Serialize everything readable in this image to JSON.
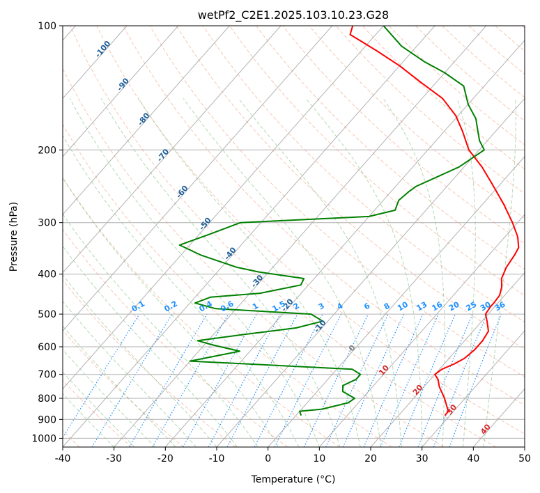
{
  "chart_data": {
    "type": "skew-t",
    "title": "wetPf2_C2E1.2025.103.10.23.G28",
    "xlabel": "Temperature (°C)",
    "ylabel": "Pressure (hPa)",
    "xlim": [
      -40,
      50
    ],
    "ylim": [
      1050,
      100
    ],
    "y_scale": "log",
    "x_ticks": [
      -40,
      -30,
      -20,
      -10,
      0,
      10,
      20,
      30,
      40,
      50
    ],
    "y_ticks": [
      100,
      200,
      300,
      400,
      500,
      600,
      700,
      800,
      900,
      1000
    ],
    "grid": true,
    "colors": {
      "temperature": "#ff0000",
      "dewpoint": "#008000",
      "isotherm": "#a0a0a0",
      "dry_adiabat": "#f4a080",
      "moist_adiabat": "#80c080",
      "mixing_ratio": "#1e90ff",
      "isotherm_label_dark": "#1f5f99",
      "isotherm_label_red": "#d62728",
      "isotherm_label_gray": "#808080"
    },
    "series": [
      {
        "key": "temperature",
        "points": [
          [
            29.0,
            880
          ],
          [
            29.0,
            860
          ],
          [
            28.0,
            840
          ],
          [
            26.0,
            800
          ],
          [
            23.0,
            750
          ],
          [
            21.5,
            720
          ],
          [
            20.0,
            700
          ],
          [
            20.5,
            680
          ],
          [
            22.0,
            660
          ],
          [
            23.0,
            640
          ],
          [
            23.5,
            610
          ],
          [
            23.5,
            580
          ],
          [
            23.0,
            550
          ],
          [
            21.0,
            520
          ],
          [
            19.5,
            500
          ],
          [
            19.2,
            480
          ],
          [
            19.2,
            470
          ],
          [
            19.0,
            450
          ],
          [
            18.0,
            430
          ],
          [
            16.5,
            410
          ],
          [
            15.5,
            385
          ],
          [
            15.0,
            360
          ],
          [
            14.5,
            345
          ],
          [
            12.5,
            325
          ],
          [
            9.0,
            300
          ],
          [
            4.0,
            270
          ],
          [
            -2.0,
            240
          ],
          [
            -6.5,
            220
          ],
          [
            -12.0,
            200
          ],
          [
            -16.5,
            180
          ],
          [
            -20.5,
            165
          ],
          [
            -26.0,
            150
          ],
          [
            -32.5,
            138
          ],
          [
            -40.0,
            125
          ],
          [
            -47.0,
            115
          ],
          [
            -55.0,
            105
          ],
          [
            -56.0,
            100
          ]
        ]
      },
      {
        "key": "dewpoint",
        "points": [
          [
            1.0,
            880
          ],
          [
            0.0,
            860
          ],
          [
            4.0,
            850
          ],
          [
            8.0,
            820
          ],
          [
            8.5,
            800
          ],
          [
            5.0,
            770
          ],
          [
            4.0,
            745
          ],
          [
            5.5,
            720
          ],
          [
            5.5,
            700
          ],
          [
            3.0,
            680
          ],
          [
            -30.0,
            650
          ],
          [
            -22.0,
            615
          ],
          [
            -28.0,
            595
          ],
          [
            -32.0,
            580
          ],
          [
            -24.0,
            560
          ],
          [
            -15.0,
            540
          ],
          [
            -11.0,
            520
          ],
          [
            -14.5,
            500
          ],
          [
            -34.0,
            485
          ],
          [
            -39.0,
            470
          ],
          [
            -37.0,
            455
          ],
          [
            -28.0,
            445
          ],
          [
            -21.5,
            425
          ],
          [
            -22.0,
            410
          ],
          [
            -32.0,
            395
          ],
          [
            -37.0,
            385
          ],
          [
            -46.0,
            360
          ],
          [
            -52.0,
            340
          ],
          [
            -48.0,
            320
          ],
          [
            -44.0,
            300
          ],
          [
            -20.0,
            290
          ],
          [
            -16.0,
            280
          ],
          [
            -17.0,
            265
          ],
          [
            -16.5,
            252
          ],
          [
            -16.0,
            245
          ],
          [
            -11.0,
            220
          ],
          [
            -9.0,
            200
          ],
          [
            -11.5,
            190
          ],
          [
            -13.5,
            180
          ],
          [
            -16.0,
            168
          ],
          [
            -20.0,
            155
          ],
          [
            -24.0,
            140
          ],
          [
            -30.0,
            130
          ],
          [
            -36.0,
            122
          ],
          [
            -43.0,
            112
          ],
          [
            -50.0,
            100
          ]
        ]
      }
    ],
    "isotherm_labels": [
      {
        "t": -100,
        "p": 115,
        "text": "-100",
        "tone": "dark"
      },
      {
        "t": -90,
        "p": 140,
        "text": "-90",
        "tone": "dark"
      },
      {
        "t": -80,
        "p": 170,
        "text": "-80",
        "tone": "dark"
      },
      {
        "t": -70,
        "p": 208,
        "text": "-70",
        "tone": "dark"
      },
      {
        "t": -60,
        "p": 255,
        "text": "-60",
        "tone": "dark"
      },
      {
        "t": -50,
        "p": 305,
        "text": "-50",
        "tone": "dark"
      },
      {
        "t": -40,
        "p": 360,
        "text": "-40",
        "tone": "dark"
      },
      {
        "t": -30,
        "p": 420,
        "text": "-30",
        "tone": "dark"
      },
      {
        "t": -20,
        "p": 480,
        "text": "-20",
        "tone": "dark"
      },
      {
        "t": -10,
        "p": 540,
        "text": "-10",
        "tone": "dark"
      },
      {
        "t": 0,
        "p": 610,
        "text": "0",
        "tone": "gray"
      },
      {
        "t": 10,
        "p": 690,
        "text": "10",
        "tone": "red"
      },
      {
        "t": 20,
        "p": 770,
        "text": "20",
        "tone": "red"
      },
      {
        "t": 30,
        "p": 860,
        "text": "30",
        "tone": "red"
      },
      {
        "t": 40,
        "p": 960,
        "text": "40",
        "tone": "red"
      }
    ],
    "mixing_ratio_labels": [
      "0.1",
      "0.2",
      "0.4",
      "0.6",
      "1",
      "1.5",
      "2",
      "3",
      "4",
      "6",
      "8",
      "10",
      "13",
      "16",
      "20",
      "25",
      "30",
      "36"
    ]
  }
}
